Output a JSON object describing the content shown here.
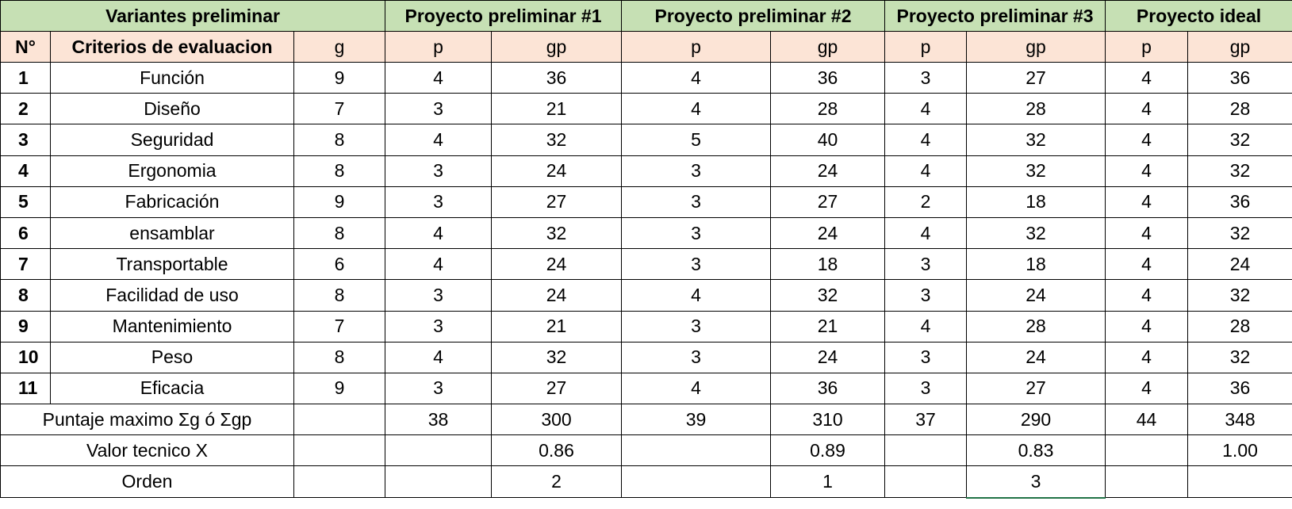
{
  "header": {
    "group_left": "Variantes preliminar",
    "group_p1": "Proyecto preliminar #1",
    "group_p2": "Proyecto preliminar #2",
    "group_p3": "Proyecto preliminar #3",
    "group_ideal": "Proyecto ideal"
  },
  "subheader": {
    "num": "N°",
    "criteria": "Criterios de evaluacion",
    "g": "g",
    "p1_p": "p",
    "p1_gp": "gp",
    "p2_p": "p",
    "p2_gp": "gp",
    "p3_p": "p",
    "p3_gp": "gp",
    "ideal_p": "p",
    "ideal_gp": "gp"
  },
  "rows": [
    {
      "n": "1",
      "criterio": "Función",
      "g": "9",
      "p1_p": "4",
      "p1_gp": "36",
      "p2_p": "4",
      "p2_gp": "36",
      "p3_p": "3",
      "p3_gp": "27",
      "ideal_p": "4",
      "ideal_gp": "36"
    },
    {
      "n": "2",
      "criterio": "Diseño",
      "g": "7",
      "p1_p": "3",
      "p1_gp": "21",
      "p2_p": "4",
      "p2_gp": "28",
      "p3_p": "4",
      "p3_gp": "28",
      "ideal_p": "4",
      "ideal_gp": "28"
    },
    {
      "n": "3",
      "criterio": "Seguridad",
      "g": "8",
      "p1_p": "4",
      "p1_gp": "32",
      "p2_p": "5",
      "p2_gp": "40",
      "p3_p": "4",
      "p3_gp": "32",
      "ideal_p": "4",
      "ideal_gp": "32"
    },
    {
      "n": "4",
      "criterio": "Ergonomia",
      "g": "8",
      "p1_p": "3",
      "p1_gp": "24",
      "p2_p": "3",
      "p2_gp": "24",
      "p3_p": "4",
      "p3_gp": "32",
      "ideal_p": "4",
      "ideal_gp": "32"
    },
    {
      "n": "5",
      "criterio": "Fabricación",
      "g": "9",
      "p1_p": "3",
      "p1_gp": "27",
      "p2_p": "3",
      "p2_gp": "27",
      "p3_p": "2",
      "p3_gp": "18",
      "ideal_p": "4",
      "ideal_gp": "36"
    },
    {
      "n": "6",
      "criterio": "ensamblar",
      "g": "8",
      "p1_p": "4",
      "p1_gp": "32",
      "p2_p": "3",
      "p2_gp": "24",
      "p3_p": "4",
      "p3_gp": "32",
      "ideal_p": "4",
      "ideal_gp": "32"
    },
    {
      "n": "7",
      "criterio": "Transportable",
      "g": "6",
      "p1_p": "4",
      "p1_gp": "24",
      "p2_p": "3",
      "p2_gp": "18",
      "p3_p": "3",
      "p3_gp": "18",
      "ideal_p": "4",
      "ideal_gp": "24"
    },
    {
      "n": "8",
      "criterio": "Facilidad de uso",
      "g": "8",
      "p1_p": "3",
      "p1_gp": "24",
      "p2_p": "4",
      "p2_gp": "32",
      "p3_p": "3",
      "p3_gp": "24",
      "ideal_p": "4",
      "ideal_gp": "32"
    },
    {
      "n": "9",
      "criterio": "Mantenimiento",
      "g": "7",
      "p1_p": "3",
      "p1_gp": "21",
      "p2_p": "3",
      "p2_gp": "21",
      "p3_p": "4",
      "p3_gp": "28",
      "ideal_p": "4",
      "ideal_gp": "28"
    },
    {
      "n": "10",
      "criterio": "Peso",
      "g": "8",
      "p1_p": "4",
      "p1_gp": "32",
      "p2_p": "3",
      "p2_gp": "24",
      "p3_p": "3",
      "p3_gp": "24",
      "ideal_p": "4",
      "ideal_gp": "32"
    },
    {
      "n": "11",
      "criterio": "Eficacia",
      "g": "9",
      "p1_p": "3",
      "p1_gp": "27",
      "p2_p": "4",
      "p2_gp": "36",
      "p3_p": "3",
      "p3_gp": "27",
      "ideal_p": "4",
      "ideal_gp": "36"
    }
  ],
  "totals": {
    "label": "Puntaje maximo Σg ó Σgp",
    "p1_p": "38",
    "p1_gp": "300",
    "p2_p": "39",
    "p2_gp": "310",
    "p3_p": "37",
    "p3_gp": "290",
    "ideal_p": "44",
    "ideal_gp": "348"
  },
  "valor": {
    "label": "Valor tecnico X",
    "p1_gp": "0.86",
    "p2_gp": "0.89",
    "p3_gp": "0.83",
    "ideal_gp": "1.00"
  },
  "orden": {
    "label": "Orden",
    "p1_gp": "2",
    "p2_gp": "1",
    "p3_gp": "3"
  },
  "colors": {
    "header_green": "#c6e0b4",
    "subheader_peach": "#fce4d6",
    "selection_green": "#217346"
  }
}
